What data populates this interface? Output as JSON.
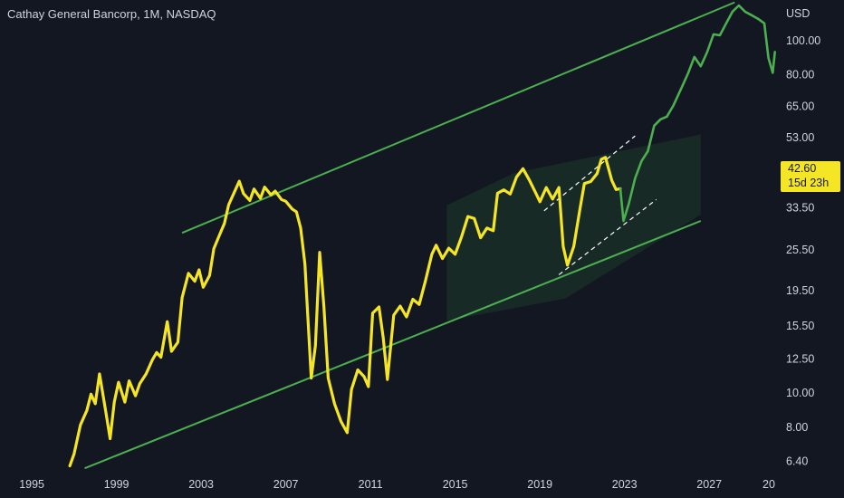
{
  "header": {
    "title": "Cathay General Bancorp, 1M, NASDAQ"
  },
  "axis": {
    "currency": "USD"
  },
  "price_badge": {
    "price": "42.60",
    "countdown": "15d 23h"
  },
  "colors": {
    "history": "#f5e625",
    "projection": "#4caf50",
    "channel": "#4caf50",
    "background": "#131722",
    "zone": "#1e3a2a"
  },
  "chart_data": {
    "type": "line",
    "title": "Cathay General Bancorp, 1M, NASDAQ",
    "xlabel": "",
    "ylabel": "USD",
    "scale": "log",
    "ylim": [
      6.0,
      130
    ],
    "xlim": [
      1993.5,
      2030.2
    ],
    "x_ticks": [
      "1995",
      "1999",
      "2003",
      "2007",
      "2011",
      "2015",
      "2019",
      "2023",
      "2027",
      "20"
    ],
    "y_ticks": [
      "100.00",
      "80.00",
      "65.00",
      "53.00",
      "42.60",
      "33.50",
      "25.50",
      "19.50",
      "15.50",
      "12.50",
      "10.00",
      "8.00",
      "6.40"
    ],
    "series": [
      {
        "values": [
          [
            1996.8,
            6.2
          ],
          [
            1997.0,
            6.7
          ],
          [
            1997.3,
            8.1
          ],
          [
            1997.6,
            8.9
          ],
          [
            1997.8,
            9.9
          ],
          [
            1998.0,
            9.3
          ],
          [
            1998.2,
            11.3
          ],
          [
            1998.5,
            8.8
          ],
          [
            1998.7,
            7.4
          ],
          [
            1998.9,
            9.4
          ],
          [
            1999.1,
            10.7
          ],
          [
            1999.4,
            9.4
          ],
          [
            1999.6,
            10.8
          ],
          [
            1999.9,
            9.8
          ],
          [
            2000.1,
            10.6
          ],
          [
            2000.4,
            11.3
          ],
          [
            2000.7,
            12.4
          ],
          [
            2000.9,
            13.0
          ],
          [
            2001.1,
            12.6
          ],
          [
            2001.4,
            15.9
          ],
          [
            2001.6,
            13.1
          ],
          [
            2001.9,
            13.9
          ],
          [
            2002.1,
            18.6
          ],
          [
            2002.4,
            21.8
          ],
          [
            2002.7,
            20.7
          ],
          [
            2002.9,
            22.3
          ],
          [
            2003.1,
            19.9
          ],
          [
            2003.4,
            21.5
          ],
          [
            2003.6,
            25.6
          ],
          [
            2003.9,
            28.3
          ],
          [
            2004.1,
            30.2
          ],
          [
            2004.3,
            34.1
          ],
          [
            2004.6,
            37.4
          ],
          [
            2004.8,
            39.8
          ],
          [
            2005.0,
            36.7
          ],
          [
            2005.3,
            35.1
          ],
          [
            2005.5,
            37.8
          ],
          [
            2005.8,
            35.6
          ],
          [
            2006.0,
            38.3
          ],
          [
            2006.3,
            36.4
          ],
          [
            2006.5,
            37.3
          ],
          [
            2006.8,
            35.3
          ],
          [
            2007.0,
            34.9
          ],
          [
            2007.3,
            33.2
          ],
          [
            2007.5,
            32.6
          ],
          [
            2007.7,
            29.3
          ],
          [
            2007.9,
            23.2
          ],
          [
            2008.0,
            18.1
          ],
          [
            2008.2,
            11.0
          ],
          [
            2008.4,
            13.6
          ],
          [
            2008.6,
            25.0
          ],
          [
            2008.8,
            17.5
          ],
          [
            2009.0,
            11.0
          ],
          [
            2009.3,
            9.3
          ],
          [
            2009.6,
            8.3
          ],
          [
            2009.9,
            7.7
          ],
          [
            2010.1,
            10.2
          ],
          [
            2010.4,
            11.6
          ],
          [
            2010.7,
            11.1
          ],
          [
            2010.9,
            10.4
          ],
          [
            2011.1,
            16.8
          ],
          [
            2011.4,
            17.5
          ],
          [
            2011.6,
            14.3
          ],
          [
            2011.8,
            10.9
          ],
          [
            2012.1,
            16.6
          ],
          [
            2012.4,
            17.6
          ],
          [
            2012.7,
            16.4
          ],
          [
            2013.0,
            18.4
          ],
          [
            2013.3,
            17.8
          ],
          [
            2013.6,
            20.8
          ],
          [
            2013.9,
            24.7
          ],
          [
            2014.1,
            26.2
          ],
          [
            2014.4,
            24.0
          ],
          [
            2014.7,
            25.7
          ],
          [
            2015.0,
            24.7
          ],
          [
            2015.3,
            27.7
          ],
          [
            2015.6,
            31.6
          ],
          [
            2015.9,
            31.2
          ],
          [
            2016.2,
            27.5
          ],
          [
            2016.5,
            29.3
          ],
          [
            2016.8,
            28.8
          ],
          [
            2017.0,
            36.8
          ],
          [
            2017.3,
            37.6
          ],
          [
            2017.6,
            36.6
          ],
          [
            2017.9,
            40.9
          ],
          [
            2018.2,
            43.2
          ],
          [
            2018.5,
            40.1
          ],
          [
            2018.8,
            36.9
          ],
          [
            2019.0,
            34.8
          ],
          [
            2019.3,
            38.2
          ],
          [
            2019.6,
            35.4
          ],
          [
            2019.9,
            38.2
          ],
          [
            2020.1,
            26.0
          ],
          [
            2020.3,
            23.0
          ],
          [
            2020.6,
            26.0
          ],
          [
            2020.9,
            33.4
          ],
          [
            2021.1,
            39.2
          ],
          [
            2021.4,
            39.7
          ],
          [
            2021.7,
            41.8
          ],
          [
            2021.9,
            45.9
          ],
          [
            2022.1,
            46.5
          ],
          [
            2022.4,
            40.0
          ],
          [
            2022.6,
            37.7
          ],
          [
            2022.8,
            37.9
          ]
        ]
      },
      {
        "values": [
          [
            2022.8,
            37.9
          ],
          [
            2022.95,
            30.7
          ],
          [
            2023.2,
            34.3
          ],
          [
            2023.5,
            40.6
          ],
          [
            2023.8,
            45.4
          ],
          [
            2024.1,
            48.4
          ],
          [
            2024.4,
            57.2
          ],
          [
            2024.7,
            59.6
          ],
          [
            2025.0,
            60.7
          ],
          [
            2025.3,
            65.1
          ],
          [
            2025.7,
            73.4
          ],
          [
            2026.0,
            80.5
          ],
          [
            2026.3,
            89.6
          ],
          [
            2026.6,
            84.3
          ],
          [
            2026.9,
            92.5
          ],
          [
            2027.2,
            103.9
          ],
          [
            2027.5,
            103.2
          ],
          [
            2027.8,
            111.6
          ],
          [
            2028.1,
            120.5
          ],
          [
            2028.4,
            125.4
          ],
          [
            2028.7,
            120.4
          ],
          [
            2029.0,
            117.8
          ],
          [
            2029.3,
            115.0
          ],
          [
            2029.6,
            111.6
          ],
          [
            2029.8,
            88.9
          ],
          [
            2030.0,
            80.8
          ],
          [
            2030.1,
            92.6
          ]
        ]
      }
    ]
  }
}
